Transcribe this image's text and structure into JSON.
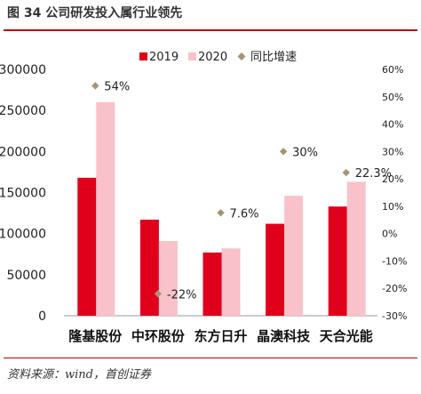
{
  "figure": {
    "title": "图 34 公司研发投入属行业领先",
    "source": "资料来源：wind，首创证券"
  },
  "chart_data": {
    "type": "bar",
    "categories": [
      "隆基股份",
      "中环股份",
      "东方日升",
      "晶澳科技",
      "天合光能"
    ],
    "series": [
      {
        "name": "2019",
        "axis": "left",
        "values": [
          168000,
          117000,
          77000,
          112000,
          133000
        ],
        "color": "#e0001b"
      },
      {
        "name": "2020",
        "axis": "left",
        "values": [
          260000,
          91000,
          82000,
          146000,
          163000
        ],
        "color": "#f9c1c9"
      },
      {
        "name": "同比增速",
        "axis": "right",
        "marker": "diamond",
        "values": [
          54,
          -22,
          7.6,
          30,
          22.3
        ],
        "labels": [
          "54%",
          "-22%",
          "7.6%",
          "30%",
          "22.3%"
        ],
        "color": "#a89473"
      }
    ],
    "left_axis": {
      "ticks": [
        "0",
        "50000",
        "100000",
        "150000",
        "200000",
        "250000",
        "300000"
      ],
      "ylim": [
        0,
        300000
      ]
    },
    "right_axis": {
      "ticks": [
        "-30%",
        "-20%",
        "-10%",
        "0%",
        "10%",
        "20%",
        "30%",
        "40%",
        "50%",
        "60%"
      ],
      "ylim": [
        -30,
        60
      ]
    },
    "legend_placement": "top-center",
    "grid": false
  }
}
